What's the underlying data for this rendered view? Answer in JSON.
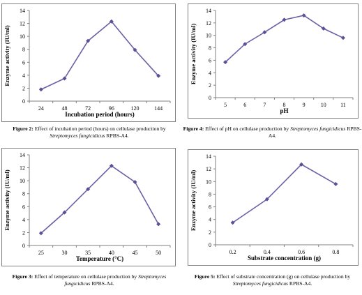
{
  "colors": {
    "line": "#6d5fa5",
    "marker": "#5b4f98",
    "frame": "#7f7f7f"
  },
  "chart_data": [
    {
      "type": "line",
      "categories": [
        "24",
        "48",
        "72",
        "96",
        "120",
        "144"
      ],
      "values": [
        1.8,
        3.5,
        9.3,
        12.3,
        7.9,
        3.9
      ],
      "xlabel": "Incubation period (hours)",
      "ylabel": "Enzyme activity (IU/ml)",
      "ylim": [
        0,
        14
      ],
      "yticks": [
        0,
        2,
        4,
        6,
        8,
        10,
        12,
        14
      ],
      "grid": false
    },
    {
      "type": "line",
      "categories": [
        "5",
        "6",
        "7",
        "8",
        "9",
        "10",
        "11"
      ],
      "values": [
        5.7,
        8.6,
        10.5,
        12.5,
        13.2,
        11.1,
        9.6
      ],
      "xlabel": "pH",
      "ylabel": "Enzyme activity (IU/ml)",
      "ylim": [
        0,
        14
      ],
      "yticks": [
        0,
        2,
        4,
        6,
        8,
        10,
        12,
        14
      ],
      "grid": false
    },
    {
      "type": "line",
      "categories": [
        "25",
        "30",
        "35",
        "40",
        "45",
        "50"
      ],
      "values": [
        1.9,
        5.1,
        8.7,
        12.3,
        9.8,
        3.3
      ],
      "xlabel": "Temperature (°C)",
      "ylabel": "Enzyme activity (IU/ml)",
      "ylim": [
        0,
        14
      ],
      "yticks": [
        0,
        2,
        4,
        6,
        8,
        10,
        12,
        14
      ],
      "grid": false
    },
    {
      "type": "line",
      "categories": [
        "0.2",
        "0.4",
        "0.6",
        "0.8"
      ],
      "values": [
        3.5,
        7.2,
        12.7,
        9.6
      ],
      "xlabel": "Substrate concentration (g)",
      "ylabel": "Enzyme activity (IU/ml)",
      "ylim": [
        0,
        14
      ],
      "yticks": [
        0,
        2,
        4,
        6,
        8,
        10,
        12,
        14
      ],
      "grid": false
    }
  ],
  "captions": [
    {
      "label": "Figure 2:",
      "pre": " Effect of incubation period (hours) on cellulase production by ",
      "species": "Streptomyces fungicidicus",
      "post": " RPBS-A4."
    },
    {
      "label": "Figure 4:",
      "pre": " Effect of pH on cellulase production by ",
      "species": "Streptomyces fungicidicus",
      "post": " RPBS-A4."
    },
    {
      "label": "Figure 3:",
      "pre": " Effect of temperature on cellulase production by ",
      "species": "Streptomyces fungicidicus",
      "post": " RPBS-A4."
    },
    {
      "label": "Figure 5:",
      "pre": " Effect of substrate concentration (g) on cellulase production by ",
      "species": "Streptomyces fungicidicus",
      "post": " RPBS-A4."
    }
  ]
}
